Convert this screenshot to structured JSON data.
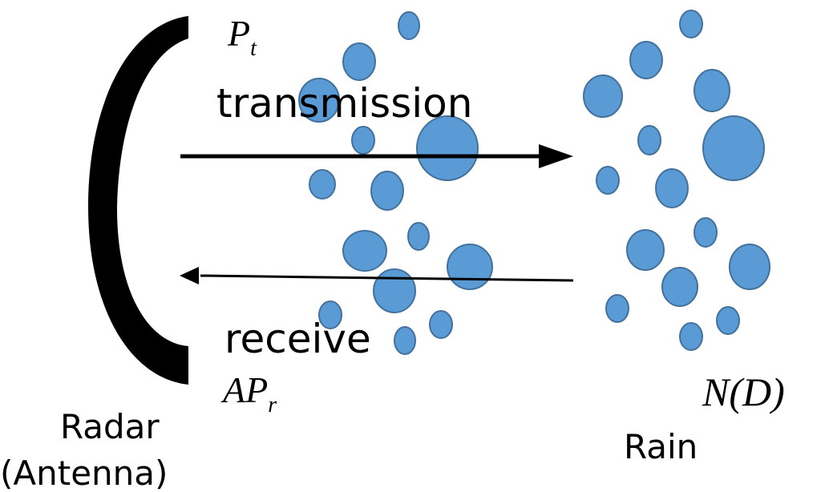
{
  "labels": {
    "transmit_power": {
      "base": "P",
      "sub": "t"
    },
    "transmission": "transmission",
    "receive": "receive",
    "receive_power": {
      "base": "AP",
      "sub": "r"
    },
    "radar": "Radar",
    "antenna": "(Antenna)",
    "rain": "Rain",
    "distribution": "N(D)"
  }
}
